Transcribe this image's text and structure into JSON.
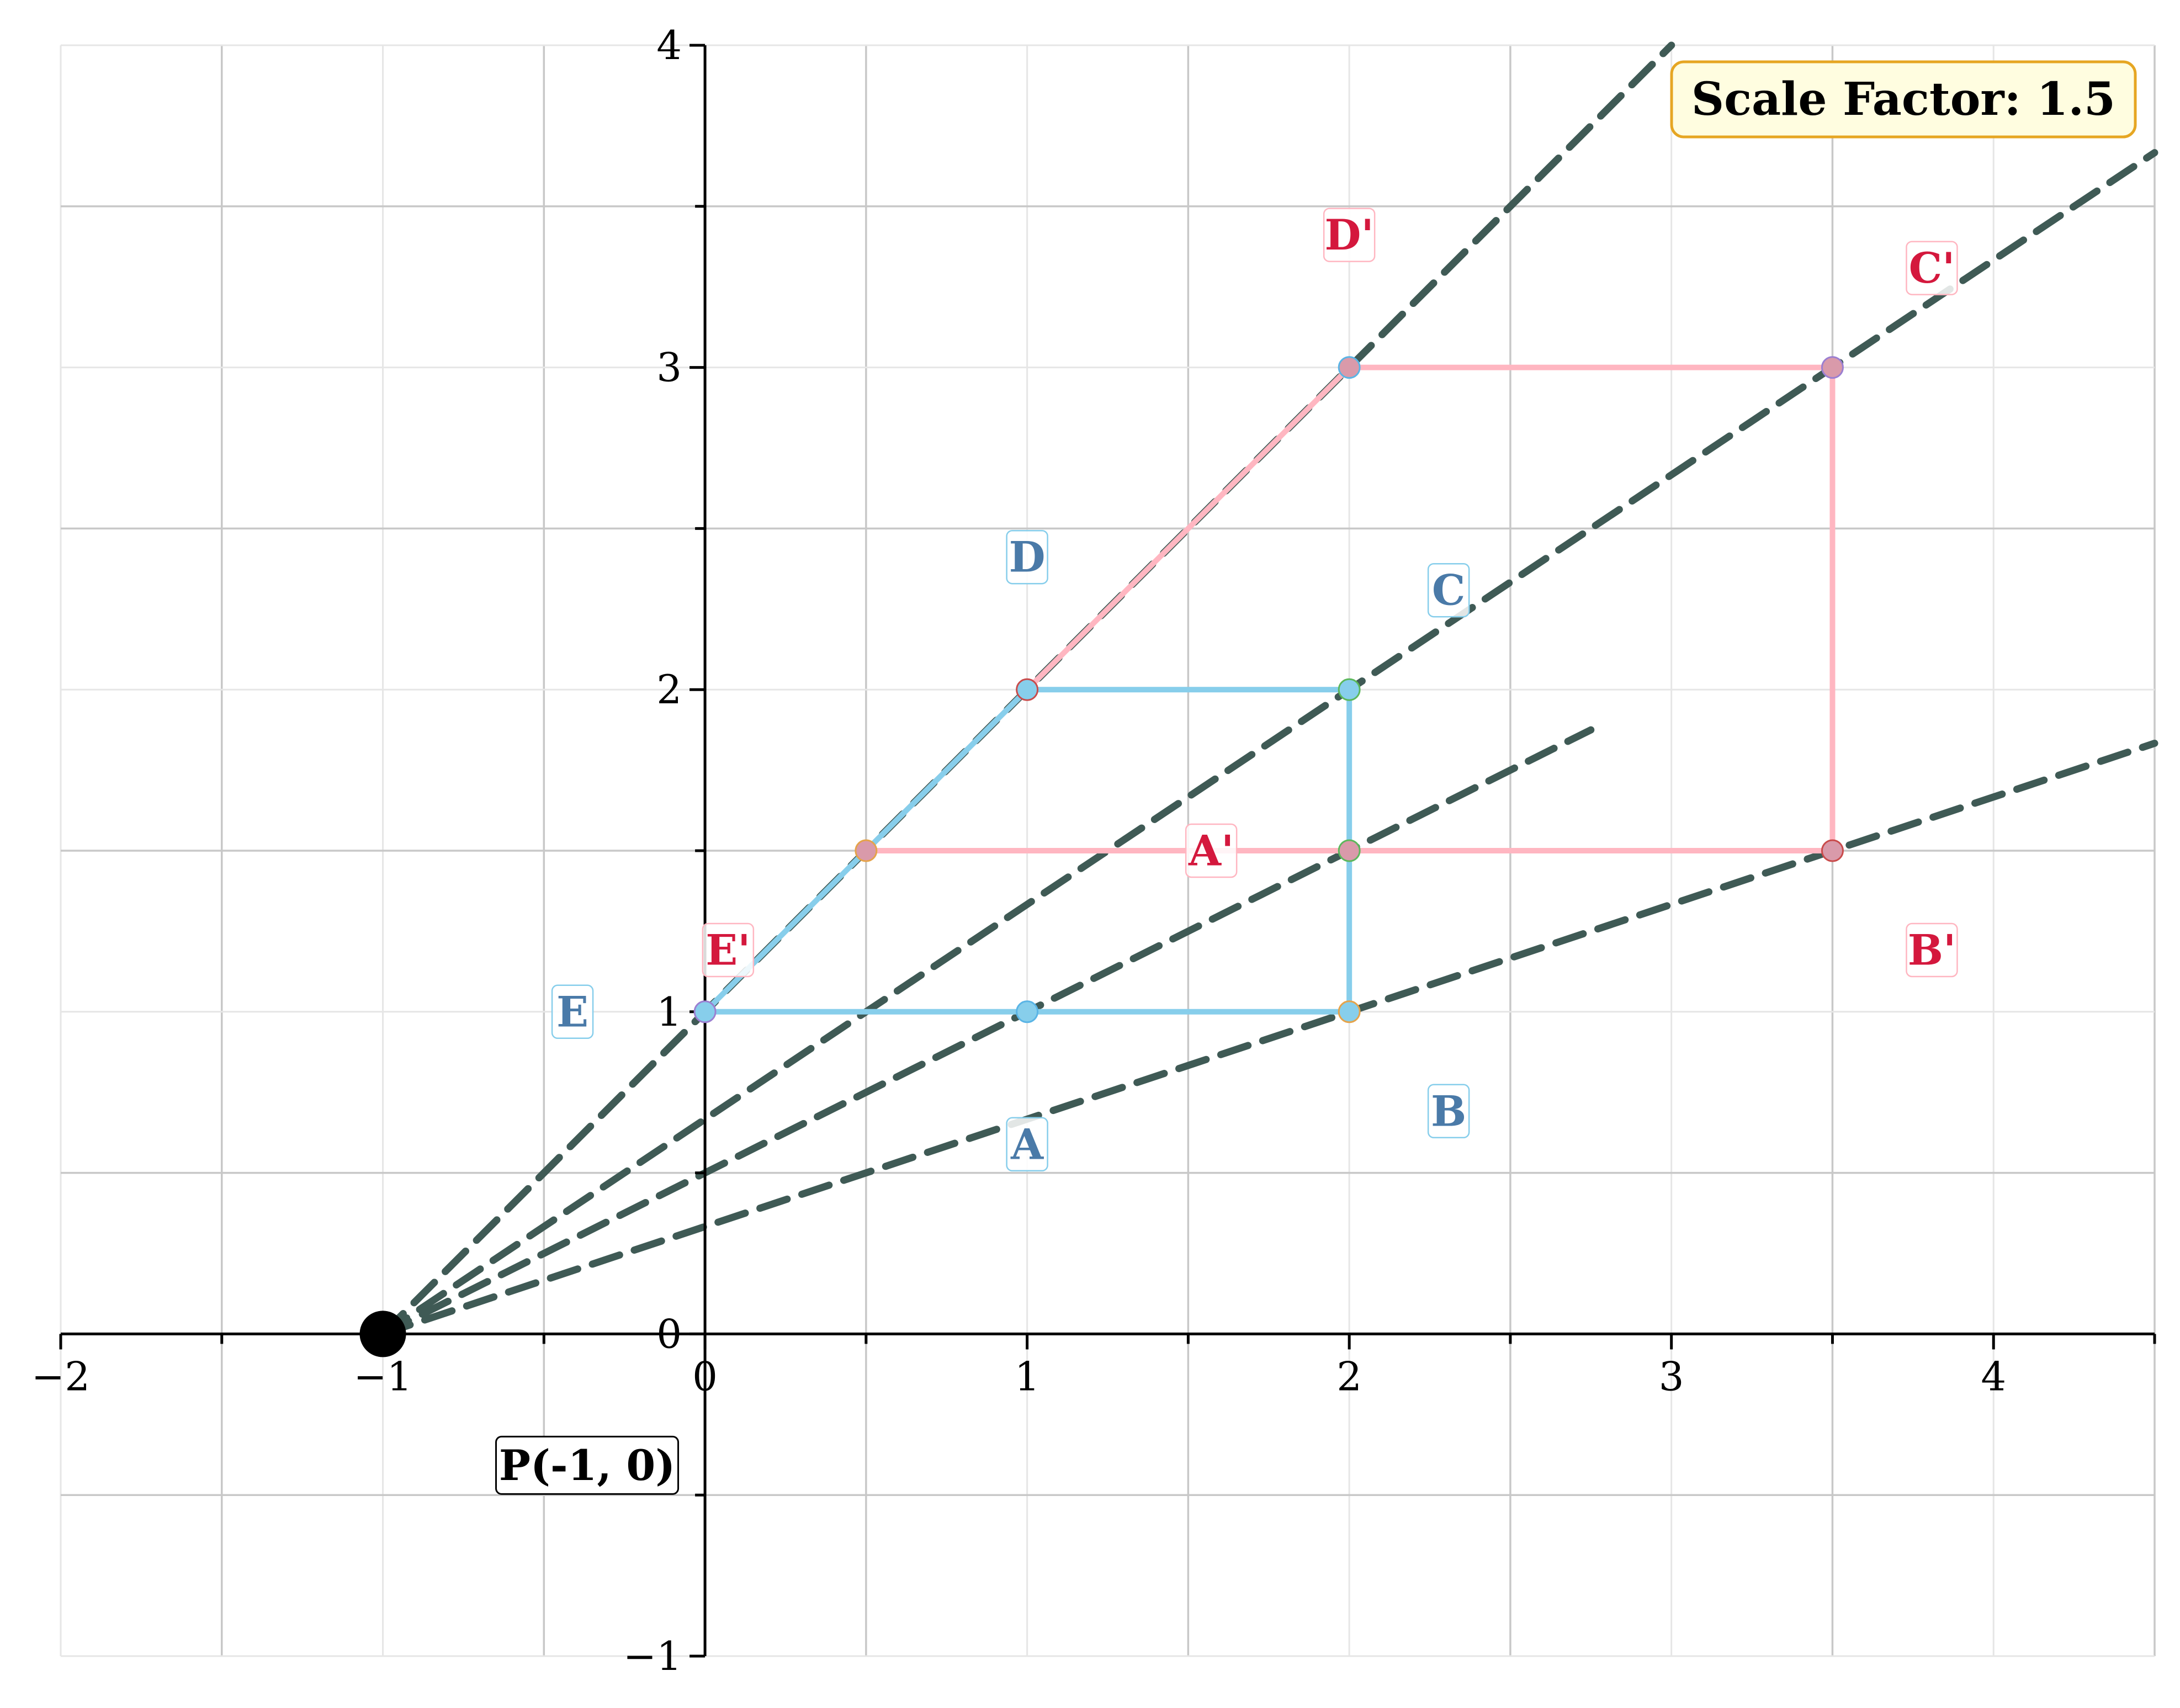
{
  "chart_data": {
    "type": "dilation-diagram",
    "title": "",
    "xlim": [
      -2,
      4.5
    ],
    "ylim": [
      -1,
      4
    ],
    "x_tick_labels": [
      "−2",
      "−1",
      "0",
      "1",
      "2",
      "3",
      "4"
    ],
    "y_tick_labels": [
      "−1",
      "0",
      "1",
      "2",
      "3",
      "4"
    ],
    "grid": true,
    "center": {
      "label": "P(-1, 0)",
      "x": -1,
      "y": 0
    },
    "scale_factor_text": "Scale Factor: 1.5",
    "scale_factor": 1.5,
    "original_polygon": {
      "vertices": [
        {
          "name": "A",
          "x": 1,
          "y": 1
        },
        {
          "name": "B",
          "x": 2,
          "y": 1
        },
        {
          "name": "C",
          "x": 2,
          "y": 2
        },
        {
          "name": "D",
          "x": 1,
          "y": 2
        },
        {
          "name": "E",
          "x": 0,
          "y": 1
        }
      ],
      "color": "#87CEEB"
    },
    "image_polygon": {
      "vertices": [
        {
          "name": "A'",
          "x": 2,
          "y": 1.5
        },
        {
          "name": "B'",
          "x": 3.5,
          "y": 1.5
        },
        {
          "name": "C'",
          "x": 3.5,
          "y": 3
        },
        {
          "name": "D'",
          "x": 2,
          "y": 3
        },
        {
          "name": "E'",
          "x": 0.5,
          "y": 1.5
        }
      ],
      "color": "#FFB6C1"
    },
    "label_colors": {
      "original": "#4a7aa8",
      "image": "#d4183d"
    },
    "ray_color": "#3f5a55",
    "grid_color": "#cccccc",
    "scale_box": {
      "fill": "#fffde0",
      "border": "#e6a623"
    }
  }
}
